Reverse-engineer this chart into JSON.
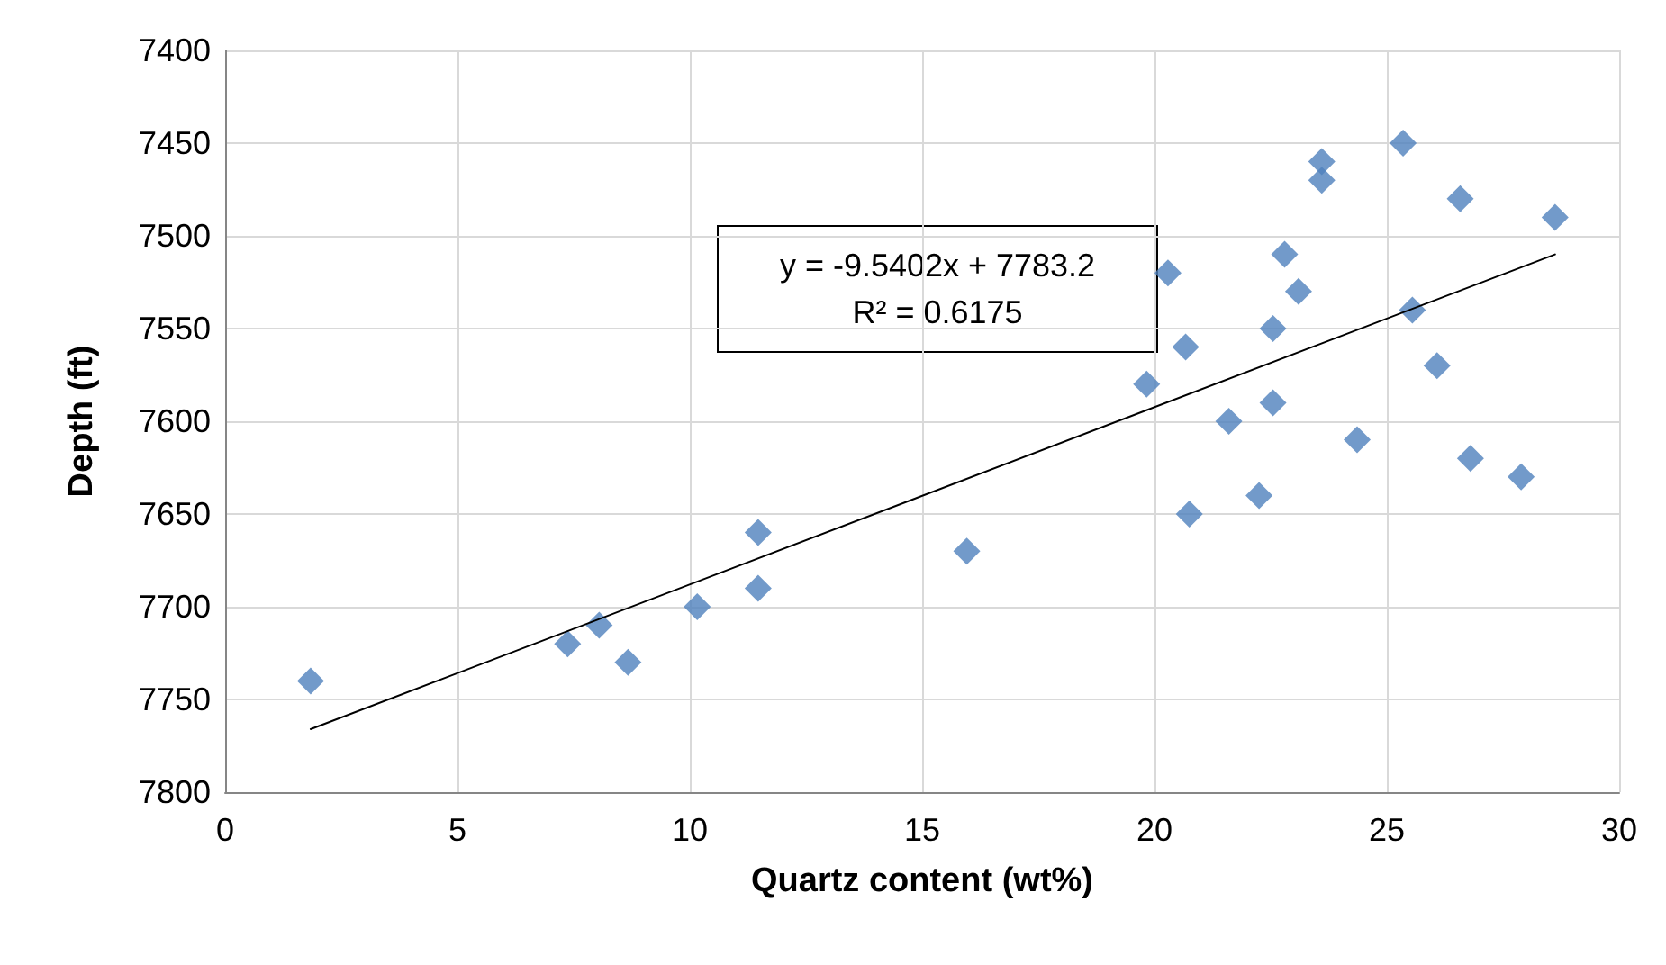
{
  "chart_data": {
    "type": "scatter",
    "xlabel": "Quartz content (wt%)",
    "ylabel": "Depth (ft)",
    "xlim": [
      0,
      30
    ],
    "xticks": [
      0,
      5,
      10,
      15,
      20,
      25,
      30
    ],
    "ylim": [
      7800,
      7400
    ],
    "yticks": [
      7400,
      7450,
      7500,
      7550,
      7600,
      7650,
      7700,
      7750,
      7800
    ],
    "grid": true,
    "annotations": [
      "y = -9.5402x + 7783.2",
      "R² = 0.6175"
    ],
    "series": [
      {
        "type": "scatter",
        "color": "#4f81bd",
        "marker": "diamond",
        "x": [
          1.84,
          7.37,
          8.05,
          8.67,
          10.16,
          11.47,
          11.47,
          15.96,
          19.83,
          20.29,
          20.67,
          20.75,
          21.6,
          22.25,
          22.55,
          22.55,
          22.8,
          23.1,
          23.6,
          23.6,
          24.36,
          25.35,
          25.55,
          26.08,
          26.58,
          26.8,
          27.89,
          28.62
        ],
        "values": [
          7740,
          7720,
          7710,
          7730,
          7700,
          7690,
          7660,
          7670,
          7580,
          7520,
          7560,
          7650,
          7600,
          7640,
          7550,
          7590,
          7510,
          7530,
          7470,
          7460,
          7610,
          7450,
          7540,
          7570,
          7480,
          7620,
          7630,
          7490
        ]
      },
      {
        "type": "line",
        "color": "#000000",
        "marker": "none",
        "line_style": "solid",
        "x": [
          1.84,
          28.62
        ],
        "values": [
          7766,
          7510
        ]
      }
    ]
  }
}
